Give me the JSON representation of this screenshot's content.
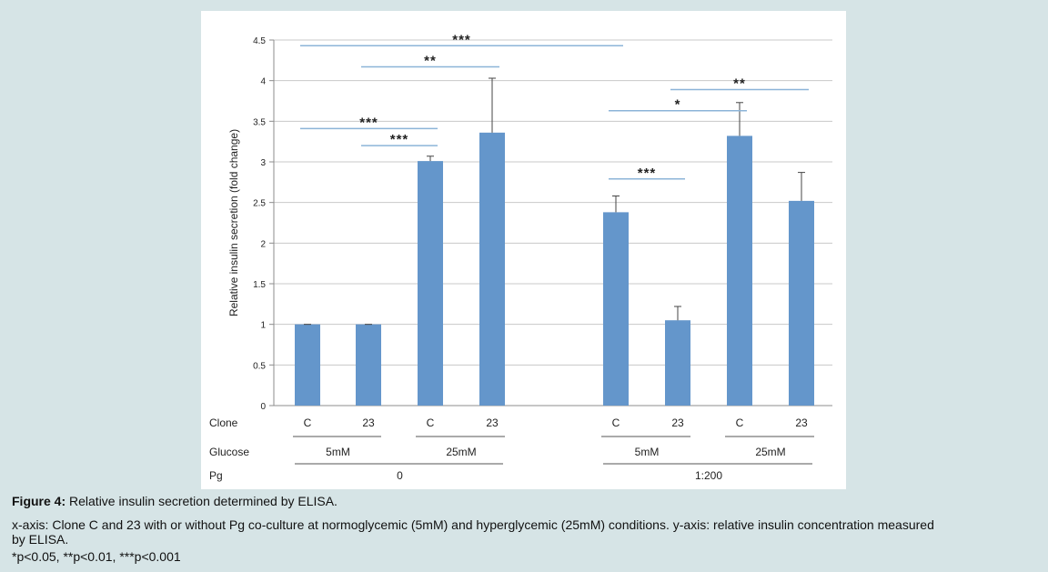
{
  "chart_data": {
    "type": "bar",
    "ylabel": "Relative insulin secretion (fold change)",
    "ylim": [
      0,
      4.5
    ],
    "yticks": [
      "0",
      "0.5",
      "1",
      "1.5",
      "2",
      "2.5",
      "3",
      "3.5",
      "4",
      "4.5"
    ],
    "grid": true,
    "bar_color": "#6496cb",
    "sig_color": "#8cb4d8",
    "bars": [
      {
        "clone": "C",
        "glucose": "5mM",
        "pg": "0",
        "value": 1.0,
        "error": 0.0
      },
      {
        "clone": "23",
        "glucose": "5mM",
        "pg": "0",
        "value": 1.0,
        "error": 0.0
      },
      {
        "clone": "C",
        "glucose": "25mM",
        "pg": "0",
        "value": 3.01,
        "error": 0.06
      },
      {
        "clone": "23",
        "glucose": "25mM",
        "pg": "0",
        "value": 3.36,
        "error": 0.67
      },
      {
        "clone": "C",
        "glucose": "5mM",
        "pg": "1:200",
        "value": 2.38,
        "error": 0.2
      },
      {
        "clone": "23",
        "glucose": "5mM",
        "pg": "1:200",
        "value": 1.05,
        "error": 0.17
      },
      {
        "clone": "C",
        "glucose": "25mM",
        "pg": "1:200",
        "value": 3.32,
        "error": 0.41
      },
      {
        "clone": "23",
        "glucose": "25mM",
        "pg": "1:200",
        "value": 2.52,
        "error": 0.35
      }
    ],
    "significance": [
      {
        "from": 0,
        "to": 4,
        "y": 4.43,
        "label": "***"
      },
      {
        "from": 1,
        "to": 3,
        "y": 4.17,
        "label": "**"
      },
      {
        "from": 0,
        "to": 2,
        "y": 3.41,
        "label": "***"
      },
      {
        "from": 1,
        "to": 2,
        "y": 3.2,
        "label": "***"
      },
      {
        "from": 4,
        "to": 6,
        "y": 3.63,
        "label": "*"
      },
      {
        "from": 5,
        "to": 7,
        "y": 3.89,
        "label": "**"
      },
      {
        "from": 4,
        "to": 5,
        "y": 2.79,
        "label": "***"
      }
    ],
    "row_labels": {
      "clone": "Clone",
      "glucose": "Glucose",
      "pg": "Pg"
    },
    "glucose_groups": [
      {
        "label": "5mM",
        "from": 0,
        "to": 1
      },
      {
        "label": "25mM",
        "from": 2,
        "to": 3
      },
      {
        "label": "5mM",
        "from": 4,
        "to": 5
      },
      {
        "label": "25mM",
        "from": 6,
        "to": 7
      }
    ],
    "pg_groups": [
      {
        "label": "0",
        "from": 0,
        "to": 3
      },
      {
        "label": "1:200",
        "from": 4,
        "to": 7
      }
    ]
  },
  "caption": {
    "title": "Figure 4:",
    "title_text": " Relative insulin secretion determined by ELISA.",
    "line1": "x-axis: Clone C and 23 with or without Pg co-culture at normoglycemic (5mM) and hyperglycemic (25mM) conditions. y-axis: relative insulin concentration measured",
    "line2": "by ELISA.",
    "line3": "*p<0.05, **p<0.01, ***p<0.001"
  }
}
